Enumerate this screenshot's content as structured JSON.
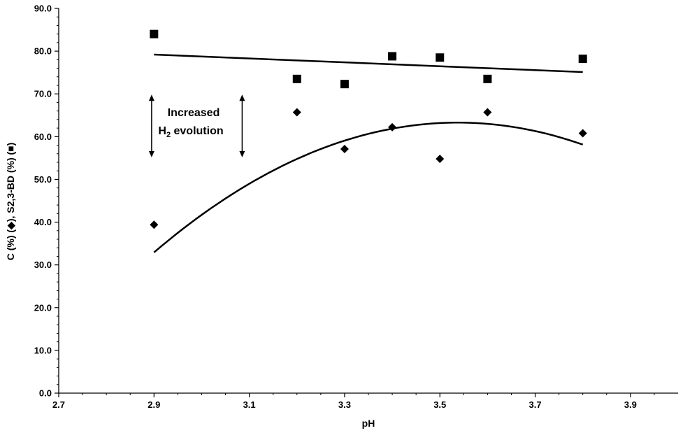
{
  "chart_data": {
    "type": "scatter",
    "title": "",
    "xlabel": "pH",
    "ylabel": "C (%) (◆), S2,3-BD (%) (■)",
    "xlim": [
      2.7,
      4.0
    ],
    "ylim": [
      0,
      90
    ],
    "x_ticks": [
      2.7,
      2.9,
      3.1,
      3.3,
      3.5,
      3.7,
      3.9
    ],
    "x_tick_labels": [
      "2.7",
      "2.9",
      "3.1",
      "3.3",
      "3.5",
      "3.7",
      "3.9"
    ],
    "y_ticks": [
      0,
      10,
      20,
      30,
      40,
      50,
      60,
      70,
      80,
      90
    ],
    "y_tick_labels": [
      "0.0",
      "10.0",
      "20.0",
      "30.0",
      "40.0",
      "50.0",
      "60.0",
      "70.0",
      "80.0",
      "90.0"
    ],
    "grid": false,
    "series": [
      {
        "marker": "square",
        "color": "#000000",
        "points": [
          [
            2.9,
            84.0
          ],
          [
            3.2,
            73.5
          ],
          [
            3.3,
            72.3
          ],
          [
            3.4,
            78.8
          ],
          [
            3.5,
            78.5
          ],
          [
            3.6,
            73.5
          ],
          [
            3.8,
            78.2
          ]
        ],
        "trendline": {
          "type": "linear",
          "from": [
            2.9,
            79.2
          ],
          "to": [
            3.8,
            75.1
          ]
        }
      },
      {
        "marker": "diamond",
        "color": "#000000",
        "points": [
          [
            2.9,
            39.4
          ],
          [
            3.2,
            65.7
          ],
          [
            3.3,
            57.1
          ],
          [
            3.4,
            62.2
          ],
          [
            3.5,
            54.8
          ],
          [
            3.6,
            65.7
          ],
          [
            3.8,
            60.8
          ]
        ],
        "trendline": {
          "type": "quadratic",
          "coeffs": [
            -74.7,
            528.5,
            -871.5
          ],
          "x_range": [
            2.9,
            3.8
          ]
        }
      }
    ],
    "annotations": {
      "line1": "Increased",
      "line2_main": "H",
      "line2_sub": "2",
      "line2_rest": " evolution",
      "arrow_ranges": [
        {
          "x": 2.895,
          "y": [
            55.5,
            69.5
          ]
        },
        {
          "x": 3.085,
          "y": [
            55.5,
            69.5
          ]
        }
      ]
    }
  }
}
